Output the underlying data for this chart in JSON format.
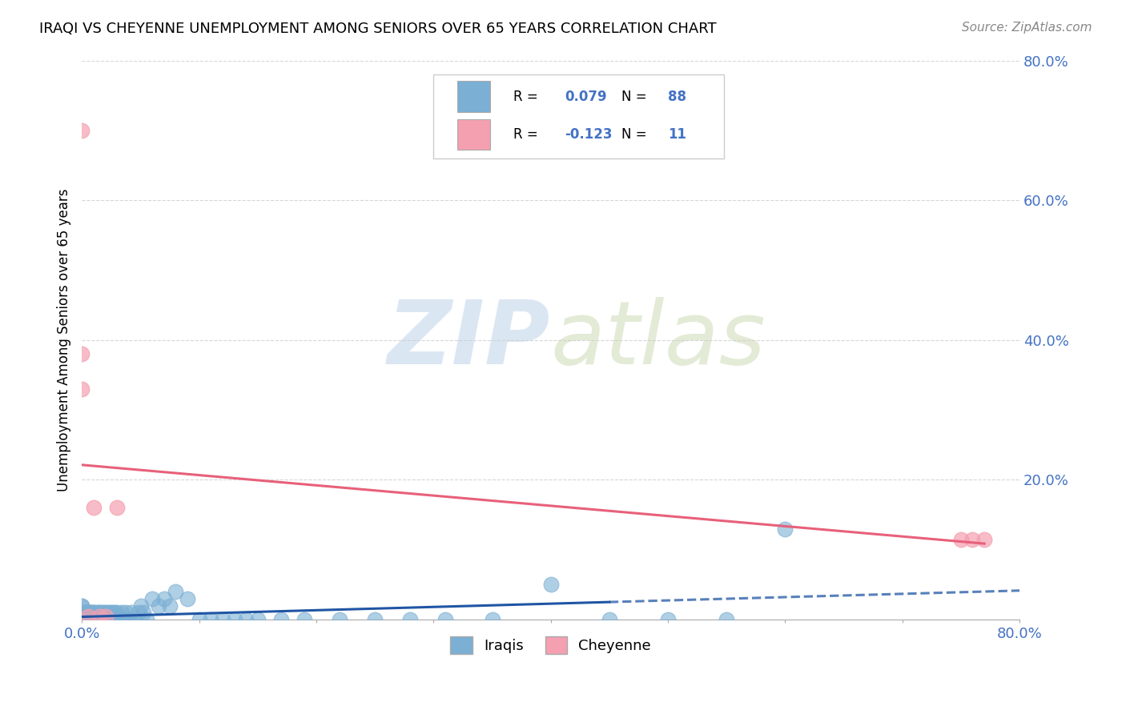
{
  "title": "IRAQI VS CHEYENNE UNEMPLOYMENT AMONG SENIORS OVER 65 YEARS CORRELATION CHART",
  "source": "Source: ZipAtlas.com",
  "ylabel": "Unemployment Among Seniors over 65 years",
  "xlim": [
    0.0,
    0.8
  ],
  "ylim": [
    0.0,
    0.8
  ],
  "right_axis_color": "#4472c4",
  "iraqis_color": "#7bafd4",
  "iraqis_edge_color": "#5b9dc0",
  "cheyenne_color": "#f4a0b0",
  "cheyenne_edge_color": "#e07090",
  "iraqis_line_color": "#2055a4",
  "cheyenne_line_color": "#e8607a",
  "iraqis_R": 0.079,
  "iraqis_N": 88,
  "cheyenne_R": -0.123,
  "cheyenne_N": 11,
  "legend_iraqis_label": "Iraqis",
  "legend_cheyenne_label": "Cheyenne",
  "watermark_zip": "ZIP",
  "watermark_atlas": "atlas",
  "iraqis_x": [
    0.0,
    0.0,
    0.0,
    0.0,
    0.0,
    0.0,
    0.0,
    0.0,
    0.0,
    0.0,
    0.003,
    0.003,
    0.003,
    0.004,
    0.004,
    0.005,
    0.005,
    0.005,
    0.006,
    0.006,
    0.007,
    0.007,
    0.008,
    0.008,
    0.009,
    0.009,
    0.01,
    0.01,
    0.01,
    0.012,
    0.012,
    0.013,
    0.014,
    0.015,
    0.015,
    0.016,
    0.017,
    0.018,
    0.019,
    0.02,
    0.02,
    0.021,
    0.022,
    0.023,
    0.024,
    0.025,
    0.026,
    0.027,
    0.028,
    0.029,
    0.03,
    0.03,
    0.032,
    0.034,
    0.035,
    0.037,
    0.038,
    0.04,
    0.042,
    0.045,
    0.048,
    0.05,
    0.052,
    0.055,
    0.06,
    0.065,
    0.07,
    0.075,
    0.08,
    0.09,
    0.1,
    0.11,
    0.12,
    0.13,
    0.14,
    0.15,
    0.17,
    0.19,
    0.22,
    0.25,
    0.28,
    0.31,
    0.35,
    0.4,
    0.45,
    0.5,
    0.55,
    0.6
  ],
  "iraqis_y": [
    0.0,
    0.0,
    0.0,
    0.0,
    0.0,
    0.0,
    0.01,
    0.01,
    0.02,
    0.02,
    0.0,
    0.0,
    0.01,
    0.0,
    0.01,
    0.0,
    0.0,
    0.01,
    0.0,
    0.01,
    0.0,
    0.01,
    0.0,
    0.01,
    0.0,
    0.01,
    0.0,
    0.0,
    0.01,
    0.0,
    0.01,
    0.0,
    0.01,
    0.0,
    0.01,
    0.0,
    0.01,
    0.0,
    0.01,
    0.0,
    0.01,
    0.0,
    0.01,
    0.0,
    0.01,
    0.0,
    0.01,
    0.0,
    0.01,
    0.0,
    0.0,
    0.01,
    0.0,
    0.01,
    0.0,
    0.01,
    0.0,
    0.0,
    0.01,
    0.0,
    0.01,
    0.02,
    0.01,
    0.0,
    0.03,
    0.02,
    0.03,
    0.02,
    0.04,
    0.03,
    0.0,
    0.0,
    0.0,
    0.0,
    0.0,
    0.0,
    0.0,
    0.0,
    0.0,
    0.0,
    0.0,
    0.0,
    0.0,
    0.05,
    0.0,
    0.0,
    0.0,
    0.13
  ],
  "cheyenne_x": [
    0.0,
    0.0,
    0.0,
    0.005,
    0.01,
    0.015,
    0.02,
    0.03,
    0.75,
    0.76,
    0.77
  ],
  "cheyenne_y": [
    0.7,
    0.38,
    0.33,
    0.005,
    0.16,
    0.005,
    0.005,
    0.16,
    0.115,
    0.115,
    0.115
  ],
  "grid_color": "#cccccc",
  "grid_style": "--",
  "spine_color": "#aaaaaa"
}
